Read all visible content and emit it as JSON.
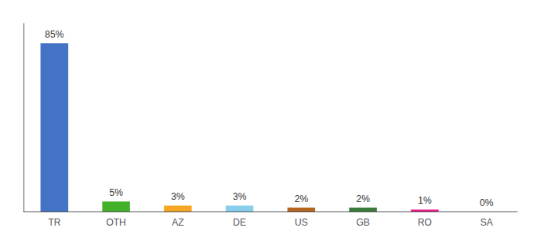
{
  "chart_data": {
    "type": "bar",
    "categories": [
      "TR",
      "OTH",
      "AZ",
      "DE",
      "US",
      "GB",
      "RO",
      "SA"
    ],
    "values": [
      85,
      5,
      3,
      3,
      2,
      2,
      1,
      0
    ],
    "value_labels": [
      "85%",
      "5%",
      "3%",
      "3%",
      "2%",
      "2%",
      "1%",
      "0%"
    ],
    "colors": [
      "#4472c4",
      "#43b02a",
      "#f5a623",
      "#87ceeb",
      "#b5651d",
      "#3a7a3a",
      "#e91e8c",
      "#c0392b"
    ],
    "ylim": [
      0,
      95
    ],
    "grid": false,
    "data_labels": true,
    "tick_labels": "x"
  }
}
